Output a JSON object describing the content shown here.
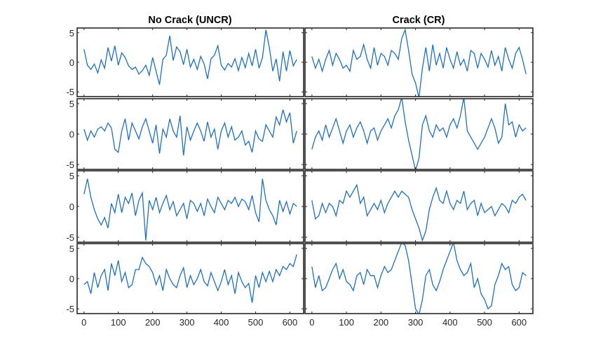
{
  "chart_data": {
    "type": "line",
    "layout": "4x2 subplot grid",
    "line_color": "#1f6fbf",
    "grid": false,
    "columns": [
      {
        "title": "No Crack (UNCR)"
      },
      {
        "title": "Crack (CR)"
      }
    ],
    "xlim": [
      -20,
      640
    ],
    "ylim": [
      -5.8,
      5.8
    ],
    "xticks": [
      0,
      100,
      200,
      300,
      400,
      500,
      600
    ],
    "yticks": [
      -5,
      0,
      5
    ],
    "x": [
      0,
      10,
      20,
      30,
      40,
      50,
      60,
      70,
      80,
      90,
      100,
      110,
      120,
      130,
      140,
      150,
      160,
      170,
      180,
      190,
      200,
      210,
      220,
      230,
      240,
      250,
      260,
      270,
      280,
      290,
      300,
      310,
      320,
      330,
      340,
      350,
      360,
      370,
      380,
      390,
      400,
      410,
      420,
      430,
      440,
      450,
      460,
      470,
      480,
      490,
      500,
      510,
      520,
      530,
      540,
      550,
      560,
      570,
      580,
      590,
      600,
      610,
      620
    ],
    "panels": [
      {
        "column": 0,
        "row": 0,
        "values": [
          2.2,
          -0.5,
          -1.2,
          -0.3,
          -1.8,
          0.4,
          -1,
          2.5,
          0.2,
          2.8,
          -0.5,
          1.6,
          0.8,
          -0.6,
          -1.2,
          -0.8,
          -2,
          -1.4,
          -0.5,
          -2.2,
          0.8,
          -1.5,
          -3.8,
          0.5,
          1.2,
          4.5,
          0.3,
          2.6,
          1.8,
          -0.4,
          2.2,
          -0.8,
          0.5,
          -1.2,
          1,
          -0.3,
          -2.8,
          0.6,
          1.2,
          2.8,
          -0.5,
          -1.3,
          -0.2,
          -0.8,
          0.6,
          -1.4,
          0.8,
          -0.9,
          1.5,
          -0.6,
          2.2,
          -1,
          0.8,
          5.5,
          2.5,
          -1.5,
          0.6,
          -3.2,
          1.8,
          -1.5,
          2,
          -0.6,
          0.5
        ]
      },
      {
        "column": 0,
        "row": 1,
        "values": [
          0.8,
          -1,
          0.5,
          -0.5,
          0.8,
          1.2,
          0.5,
          1.8,
          1,
          -2.5,
          -3,
          0.5,
          2.5,
          -1,
          1.8,
          0.5,
          -0.8,
          1.2,
          2.5,
          0.5,
          -1.5,
          1.5,
          -3.2,
          0.8,
          -0.5,
          2.5,
          0.5,
          -0.5,
          3,
          -3.5,
          1.2,
          -1,
          0.5,
          1.8,
          0.5,
          -1.2,
          2,
          -0.5,
          0.8,
          -2.5,
          0.5,
          1.8,
          -0.5,
          1.2,
          -1,
          -0.5,
          0.5,
          -1.8,
          -1.2,
          -3,
          0.5,
          -0.8,
          -1.2,
          1.5,
          0.5,
          -0.5,
          2.8,
          1.5,
          4,
          2,
          3.5,
          -1.5,
          0.5
        ]
      },
      {
        "column": 0,
        "row": 2,
        "values": [
          2,
          4.5,
          1.5,
          -0.5,
          -2,
          -3,
          -1.8,
          -3.5,
          0.5,
          -1,
          2,
          -1,
          1.5,
          0.5,
          2.2,
          -1.5,
          1,
          2.2,
          -5.5,
          1,
          -0.5,
          1.5,
          -1,
          0.5,
          1.8,
          -0.5,
          0.8,
          -1.5,
          -0.5,
          0.5,
          -2,
          1,
          0.5,
          -0.8,
          0.5,
          -1.5,
          1.2,
          0,
          -1,
          1.5,
          0.5,
          -0.5,
          1,
          0.5,
          1.5,
          0,
          1.2,
          0.8,
          -0.5,
          1.8,
          -1,
          -2.5,
          4.5,
          1,
          -0.5,
          -1.5,
          -3,
          1,
          -0.8,
          0.8,
          -1.2,
          0.5,
          0
        ]
      },
      {
        "column": 0,
        "row": 3,
        "values": [
          -1,
          -0.5,
          -2.5,
          1,
          -1.5,
          0.5,
          1.5,
          -2,
          2.5,
          0.5,
          3,
          -0.5,
          1,
          -1.5,
          -1,
          1.5,
          1.5,
          3.5,
          2.5,
          2,
          1,
          -1,
          0.5,
          -2,
          1.5,
          0,
          -1,
          -1.5,
          0.5,
          1.8,
          -1.5,
          0.5,
          -1,
          0,
          1.5,
          -0.5,
          -1.2,
          1,
          -0.5,
          -2,
          -0.5,
          1.5,
          -1,
          0.5,
          -2.5,
          1,
          -0.5,
          -1.5,
          -0.8,
          -4,
          0.5,
          -1.5,
          1,
          -0.5,
          1.2,
          -0.5,
          1.5,
          0.5,
          2,
          1.5,
          2.5,
          2,
          4
        ]
      },
      {
        "column": 1,
        "row": 0,
        "values": [
          1,
          -1,
          0.5,
          -1.5,
          0.5,
          2,
          -0.5,
          1.5,
          0.5,
          -1,
          -0.5,
          -1.5,
          2,
          0.5,
          1,
          3,
          0.5,
          -1,
          2.5,
          -0.5,
          1.5,
          1,
          -0.5,
          2,
          1.5,
          0.5,
          4,
          5.5,
          2,
          -2,
          -3.5,
          -6,
          -1,
          2.5,
          -1.5,
          3,
          -0.5,
          1.5,
          -1,
          2.5,
          0.5,
          -1,
          1.8,
          -0.5,
          0.5,
          -1.5,
          2,
          1.5,
          -1,
          1.5,
          0.5,
          -0.8,
          2,
          -0.5,
          1,
          -1.5,
          2.5,
          0.5,
          -1,
          1.5,
          2.5,
          0.5,
          -2
        ]
      },
      {
        "column": 1,
        "row": 1,
        "values": [
          -2.5,
          -0.5,
          0.5,
          -1,
          1.5,
          -0.5,
          1,
          2.5,
          0.5,
          -1.5,
          0.5,
          1.5,
          -0.5,
          1,
          2,
          0.5,
          -1.5,
          0.5,
          1,
          -1,
          0.5,
          1.5,
          2.5,
          1,
          3,
          4,
          6,
          2,
          -1,
          -3.5,
          -6,
          -4,
          1.5,
          3,
          0.5,
          -0.5,
          1.5,
          0.5,
          1,
          -0.5,
          1.5,
          2.5,
          1,
          3,
          6,
          0.5,
          -0.5,
          -1.5,
          -2.5,
          -1.5,
          -0.5,
          1,
          2.5,
          1,
          -1.5,
          -0.5,
          5,
          1.5,
          2,
          -0.5,
          1.5,
          0.5,
          1
        ]
      },
      {
        "column": 1,
        "row": 2,
        "values": [
          1,
          -2,
          -1.5,
          0.5,
          -1,
          0.5,
          0,
          -1.5,
          1,
          0.5,
          2.5,
          1.5,
          2.5,
          3.5,
          0.5,
          1.5,
          -1.5,
          -0.5,
          0.5,
          -0.5,
          1,
          -1,
          0.5,
          1.5,
          2.5,
          1.5,
          2.5,
          2,
          1.5,
          -0.5,
          -2,
          -3.5,
          -5.5,
          -4,
          -0.5,
          1.5,
          3,
          1,
          0.5,
          2.5,
          0.5,
          -0.5,
          1,
          0.5,
          2.5,
          -0.5,
          0.5,
          1,
          -1.5,
          0.5,
          -1,
          -0.5,
          0,
          -1.5,
          -0.5,
          0.5,
          0,
          -1,
          1,
          0.5,
          1.5,
          2,
          1
        ]
      },
      {
        "column": 1,
        "row": 3,
        "values": [
          2,
          -1.5,
          0.5,
          -2,
          -1.5,
          0,
          1.5,
          2.5,
          0,
          1.5,
          -0.5,
          -1,
          -2,
          0.5,
          1,
          -1,
          1.5,
          0.5,
          0.5,
          -1.5,
          0.5,
          2,
          1,
          1.5,
          3,
          4.5,
          6,
          5.5,
          3,
          -1,
          -5,
          -6,
          -3.5,
          0.5,
          1.5,
          -1,
          -2,
          -0.5,
          1.5,
          3,
          4.5,
          6,
          3,
          1.5,
          0.5,
          1,
          2.5,
          -1.5,
          0,
          -2.5,
          -3.5,
          -5,
          -4.5,
          -1,
          0.5,
          2.5,
          1.5,
          2,
          -1,
          -2,
          -1.5,
          1,
          0.5
        ]
      }
    ]
  }
}
